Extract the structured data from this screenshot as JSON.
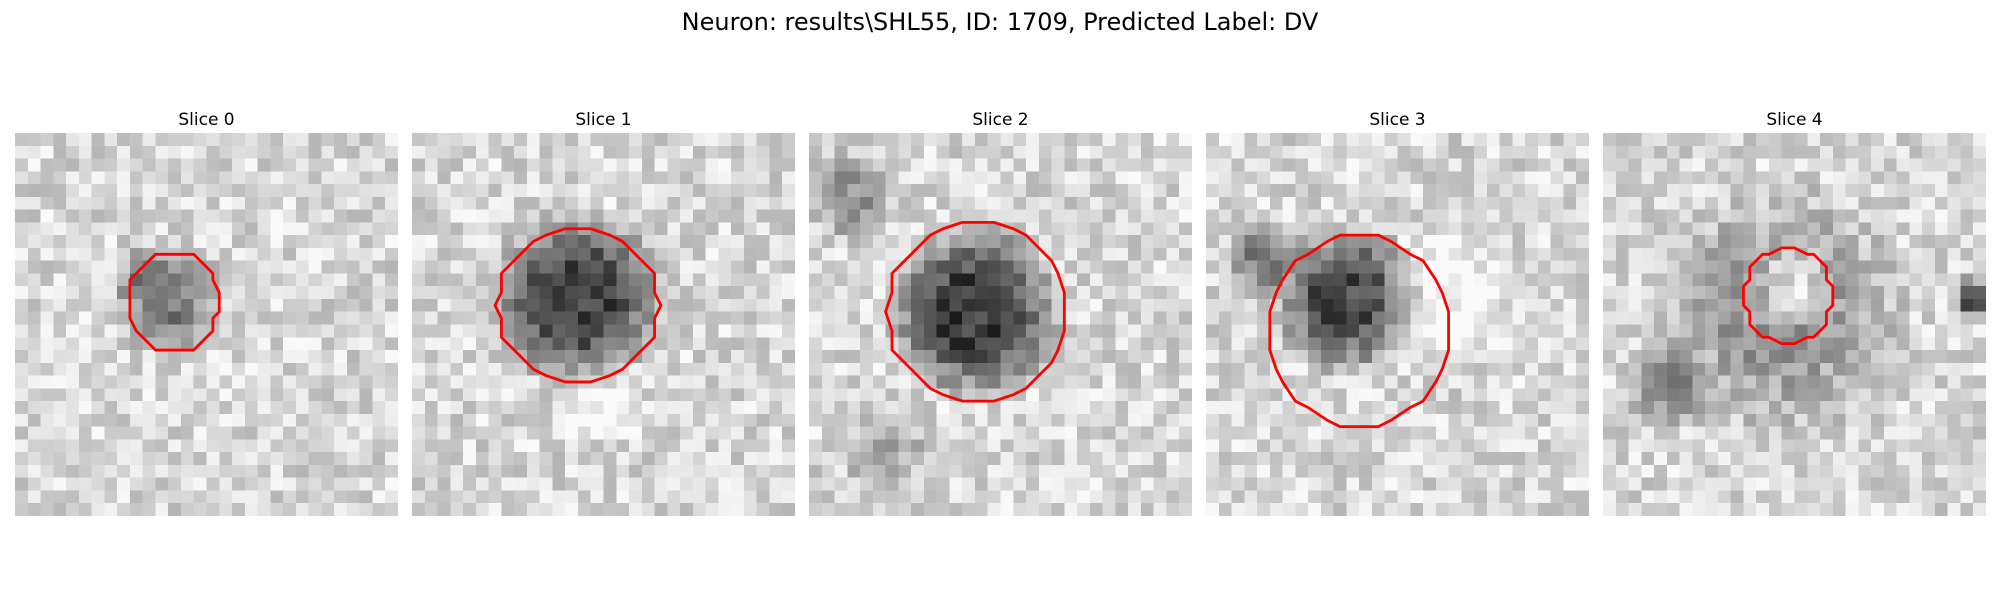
{
  "figure": {
    "title": "Neuron: results\\SHL55, ID: 1709, Predicted Label: DV"
  },
  "contour_color": "#ff0000",
  "panels": [
    {
      "title": "Slice 0",
      "seed": 11,
      "blobs": [
        {
          "cx": 12,
          "cy": 13,
          "r": 4.8,
          "d": 90
        },
        {
          "cx": 10,
          "cy": 11,
          "r": 2.5,
          "d": 30
        }
      ],
      "contour": {
        "cx": 12.4,
        "cy": 13.2,
        "rx": 3.6,
        "ry": 3.9
      }
    },
    {
      "title": "Slice 1",
      "seed": 23,
      "blobs": [
        {
          "cx": 13,
          "cy": 13,
          "r": 7.5,
          "d": 150
        },
        {
          "cx": 15,
          "cy": 21,
          "r": 4,
          "d": -30
        }
      ],
      "contour": {
        "cx": 13.0,
        "cy": 13.5,
        "rx": 6.3,
        "ry": 6.0
      }
    },
    {
      "title": "Slice 2",
      "seed": 37,
      "blobs": [
        {
          "cx": 13,
          "cy": 14,
          "r": 7.5,
          "d": 155
        },
        {
          "cx": 3,
          "cy": 5,
          "r": 4,
          "d": 60
        },
        {
          "cx": 6,
          "cy": 25,
          "r": 4,
          "d": 40
        }
      ],
      "contour": {
        "cx": 13.2,
        "cy": 14.0,
        "rx": 7.0,
        "ry": 7.2
      }
    },
    {
      "title": "Slice 3",
      "seed": 41,
      "blobs": [
        {
          "cx": 11,
          "cy": 13,
          "r": 6.5,
          "d": 140
        },
        {
          "cx": 4,
          "cy": 10,
          "r": 3,
          "d": 90
        },
        {
          "cx": 19,
          "cy": 13,
          "r": 6,
          "d": -40
        }
      ],
      "contour": {
        "cx": 12.0,
        "cy": 15.5,
        "rx": 7.0,
        "ry": 7.5
      }
    },
    {
      "title": "Slice 4",
      "seed": 53,
      "blobs": [
        {
          "cx": 14,
          "cy": 14,
          "r": 11,
          "d": 60
        },
        {
          "cx": 15,
          "cy": 12,
          "r": 3.5,
          "d": -70
        },
        {
          "cx": 29,
          "cy": 13,
          "r": 2,
          "d": 120
        },
        {
          "cx": 5,
          "cy": 20,
          "r": 4,
          "d": 70
        }
      ],
      "contour": {
        "cx": 14.5,
        "cy": 12.8,
        "rx": 3.5,
        "ry": 3.7
      }
    }
  ]
}
